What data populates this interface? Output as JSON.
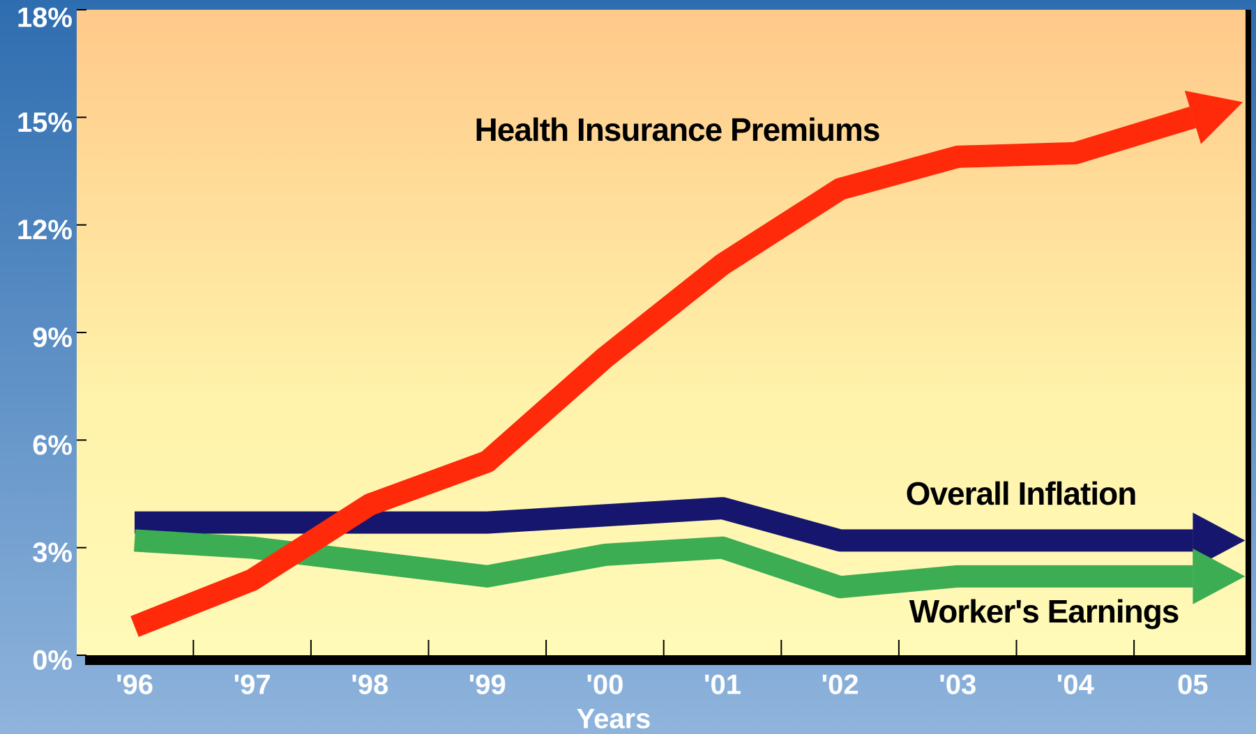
{
  "chart_data": {
    "type": "line",
    "x_label": "Years",
    "categories": [
      "'96",
      "'97",
      "'98",
      "'99",
      "'00",
      "'01",
      "'02",
      "'03",
      "'04",
      "05"
    ],
    "series": [
      {
        "name": "Health Insurance Premiums",
        "color": "#ff2a0a",
        "values": [
          0.8,
          2.1,
          4.2,
          5.4,
          8.3,
          10.9,
          13.0,
          13.9,
          14.0,
          15.0
        ]
      },
      {
        "name": "Overall Inflation",
        "color": "#16166e",
        "values": [
          3.7,
          3.7,
          3.7,
          3.7,
          3.9,
          4.1,
          3.2,
          3.2,
          3.2,
          3.2
        ]
      },
      {
        "name": "Worker's Earnings",
        "color": "#3cad52",
        "values": [
          3.2,
          3.0,
          2.6,
          2.2,
          2.8,
          3.0,
          1.9,
          2.2,
          2.2,
          2.2
        ]
      }
    ],
    "ylim": [
      0,
      18
    ],
    "yticks": [
      {
        "value": 0,
        "label": "0%"
      },
      {
        "value": 3,
        "label": "3%"
      },
      {
        "value": 6,
        "label": "6%"
      },
      {
        "value": 9,
        "label": "9%"
      },
      {
        "value": 12,
        "label": "12%"
      },
      {
        "value": 15,
        "label": "15%"
      },
      {
        "value": 18,
        "label": "18%"
      }
    ]
  }
}
